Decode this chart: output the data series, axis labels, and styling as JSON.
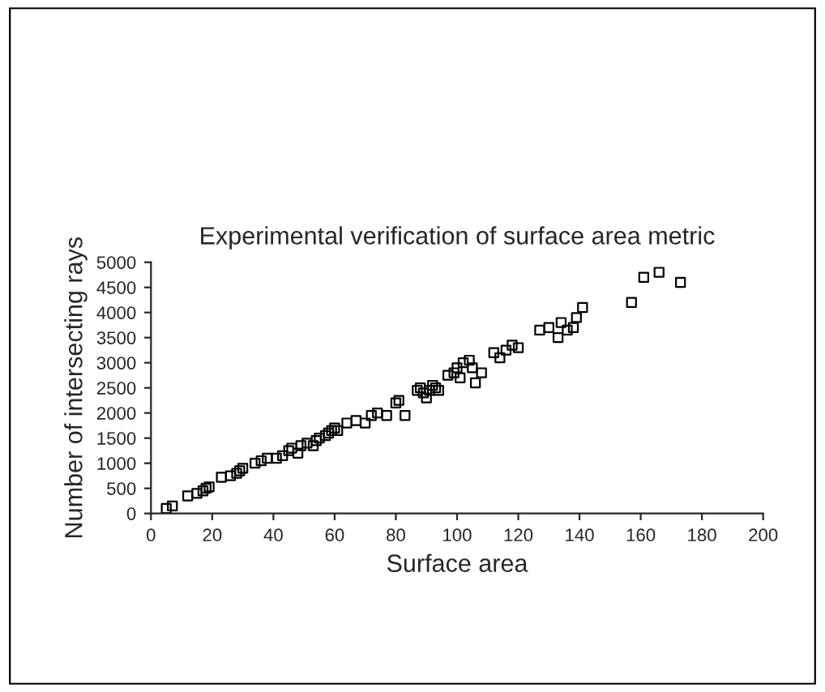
{
  "chart_data": {
    "type": "scatter",
    "title": "Experimental verification of surface area metric",
    "xlabel": "Surface area",
    "ylabel": "Number of intersecting rays",
    "xlim": [
      0,
      200
    ],
    "xticks": [
      0,
      20,
      40,
      60,
      80,
      100,
      120,
      140,
      160,
      180,
      200
    ],
    "ylim": [
      0,
      5000
    ],
    "yticks": [
      0,
      500,
      1000,
      1500,
      2000,
      2500,
      3000,
      3500,
      4000,
      4500,
      5000
    ],
    "marker": "square",
    "grid": false,
    "series": [
      {
        "color": "#000000",
        "x": [
          5,
          7,
          12,
          15,
          17,
          18,
          19,
          23,
          26,
          28,
          29,
          30,
          34,
          36,
          38,
          41,
          43,
          45,
          46,
          48,
          49,
          51,
          53,
          54,
          55,
          57,
          58,
          59,
          60,
          61,
          64,
          67,
          70,
          72,
          74,
          77,
          80,
          81,
          83,
          87,
          88,
          89,
          90,
          91,
          92,
          93,
          94,
          97,
          99,
          100,
          101,
          102,
          104,
          105,
          106,
          108,
          112,
          114,
          116,
          118,
          120,
          127,
          130,
          133,
          134,
          136,
          138,
          139,
          141,
          157,
          161,
          166,
          173
        ],
        "values": [
          100,
          150,
          350,
          400,
          450,
          500,
          530,
          720,
          750,
          800,
          850,
          900,
          1000,
          1050,
          1100,
          1100,
          1150,
          1250,
          1300,
          1200,
          1350,
          1400,
          1350,
          1450,
          1500,
          1550,
          1600,
          1650,
          1700,
          1650,
          1800,
          1850,
          1800,
          1950,
          2000,
          1950,
          2200,
          2250,
          1950,
          2450,
          2500,
          2400,
          2300,
          2450,
          2550,
          2500,
          2450,
          2750,
          2800,
          2900,
          2700,
          3000,
          3050,
          2900,
          2600,
          2800,
          3200,
          3100,
          3250,
          3350,
          3300,
          3650,
          3700,
          3500,
          3800,
          3650,
          3700,
          3900,
          4100,
          4200,
          4700,
          4800,
          4600
        ]
      }
    ]
  }
}
